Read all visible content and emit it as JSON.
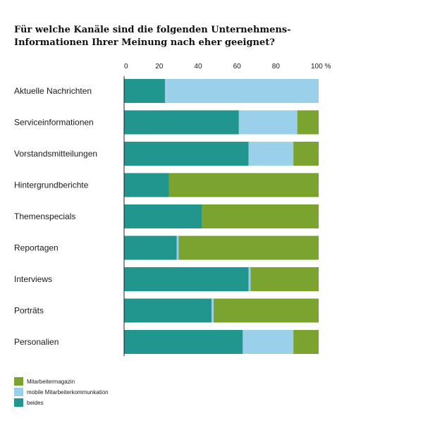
{
  "title_lines": [
    "Für welche Kanäle sind die folgenden Unternehmens-",
    "Informationen Ihrer Meinung nach eher geeignet?"
  ],
  "colors": {
    "beides": "#21968f",
    "mobile": "#9ad0ea",
    "magazin": "#7ba32f"
  },
  "chart_data": {
    "type": "bar",
    "orientation": "horizontal",
    "stacked": true,
    "title": "Für welche Kanäle sind die folgenden Unternehmens-Informationen Ihrer Meinung nach eher geeignet?",
    "x_ticks": [
      "0",
      "20",
      "40",
      "60",
      "80",
      "100 %"
    ],
    "xlim": [
      0,
      100
    ],
    "grid": false,
    "legend_placement": "bottom-left",
    "categories": [
      "Aktuelle Nachrichten",
      "Serviceinformationen",
      "Vorstandsmitteilungen",
      "Hintergrundberichte",
      "Themenspecials",
      "Reportagen",
      "Interviews",
      "Porträts",
      "Personalien"
    ],
    "series": [
      {
        "name": "beides",
        "color_key": "beides",
        "values": [
          21,
          59,
          64,
          23,
          40,
          27,
          64,
          45,
          61
        ]
      },
      {
        "name": "mobile Mitarbeiterkommunkation",
        "color_key": "mobile",
        "values": [
          79,
          30,
          23,
          0,
          0,
          1,
          1,
          1,
          26
        ]
      },
      {
        "name": "Mitarbeitermagazin",
        "color_key": "magazin",
        "values": [
          0,
          11,
          13,
          77,
          60,
          72,
          35,
          54,
          13
        ]
      }
    ],
    "legend_order": [
      "Mitarbeitermagazin",
      "mobile Mitarbeiterkommunkation",
      "beides"
    ]
  }
}
